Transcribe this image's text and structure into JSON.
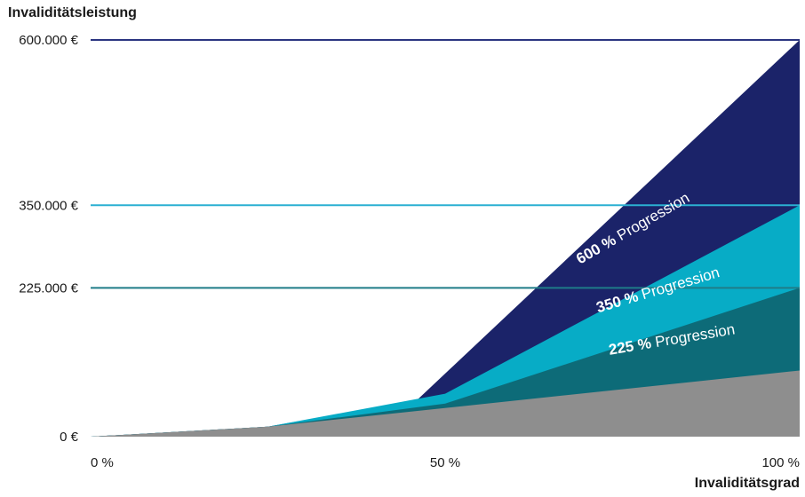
{
  "chart_data": {
    "type": "area",
    "ylabel": "Invaliditätsleistung",
    "xlabel": "Invaliditätsgrad",
    "x_ticks": [
      {
        "value": 0,
        "label": "0 %"
      },
      {
        "value": 50,
        "label": "50 %"
      },
      {
        "value": 100,
        "label": "100 %"
      }
    ],
    "y_ticks": [
      {
        "value": 0,
        "label": "0 €"
      },
      {
        "value": 225000,
        "label": "225.000 €"
      },
      {
        "value": 350000,
        "label": "350.000 €"
      },
      {
        "value": 600000,
        "label": "600.000 €"
      }
    ],
    "xlim": [
      0,
      100
    ],
    "ylim": [
      0,
      600000
    ],
    "series": [
      {
        "bold": "225 %",
        "rest": " Progression",
        "color": "#0d6b78",
        "points": [
          [
            0,
            0
          ],
          [
            25,
            15000
          ],
          [
            50,
            50000
          ],
          [
            100,
            225000
          ]
        ]
      },
      {
        "bold": "350 %",
        "rest": " Progression",
        "color": "#07acc6",
        "points": [
          [
            0,
            0
          ],
          [
            25,
            15000
          ],
          [
            50,
            65000
          ],
          [
            100,
            350000
          ]
        ]
      },
      {
        "bold": "600 %",
        "rest": " Progression",
        "color": "#1b2369",
        "points": [
          [
            0,
            0
          ],
          [
            25,
            15000
          ],
          [
            46,
            55000
          ],
          [
            100,
            600000
          ]
        ]
      }
    ],
    "base": {
      "color": "#8e8e8e",
      "points": [
        [
          0,
          0
        ],
        [
          25,
          15000
        ],
        [
          100,
          100000
        ]
      ]
    },
    "reference_lines": [
      {
        "value": 600000,
        "color": "#2b3580"
      },
      {
        "value": 350000,
        "color": "#2bb0d2"
      },
      {
        "value": 225000,
        "color": "#1f7c88"
      }
    ]
  }
}
